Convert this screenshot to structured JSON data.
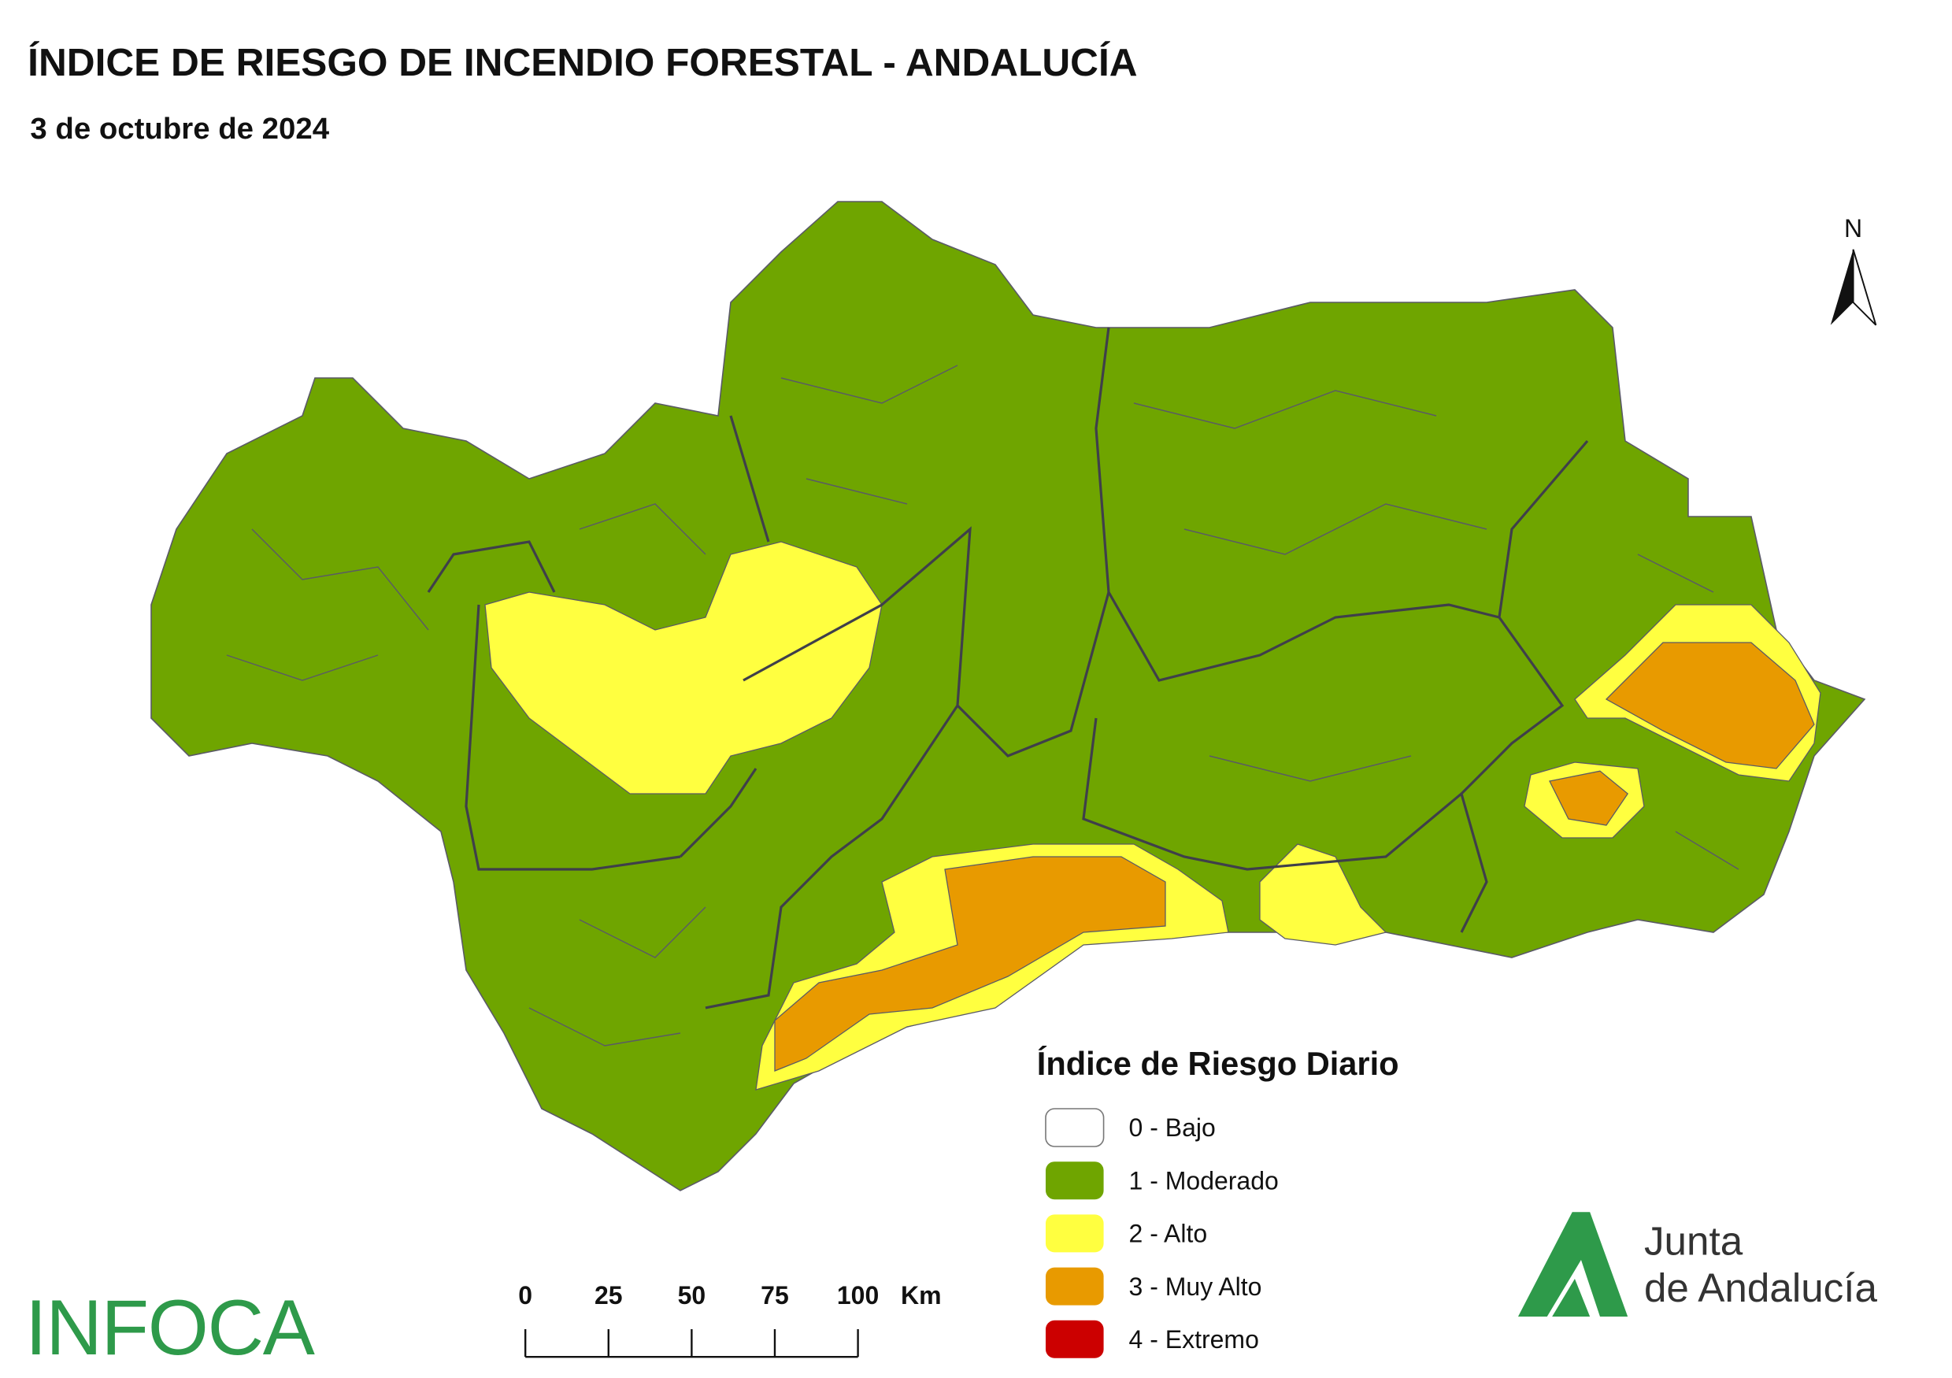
{
  "header": {
    "title": "ÍNDICE DE RIESGO DE INCENDIO FORESTAL - ANDALUCÍA",
    "subtitle": "3 de octubre de 2024"
  },
  "north": "N",
  "legend": {
    "title": "Índice de Riesgo Diario",
    "items": [
      {
        "label": "0 - Bajo",
        "color": "#ffffff"
      },
      {
        "label": "1 - Moderado",
        "color": "#6fa500"
      },
      {
        "label": "2 - Alto",
        "color": "#ffff40"
      },
      {
        "label": "3 - Muy Alto",
        "color": "#e89a00"
      },
      {
        "label": "4 - Extremo",
        "color": "#cc0000"
      }
    ]
  },
  "scale_bar": {
    "ticks": [
      0,
      25,
      50,
      75,
      100
    ],
    "unit": "Km"
  },
  "logos": {
    "infoca": "INFOCA",
    "junta": [
      "Junta",
      "de Andalucía"
    ]
  }
}
